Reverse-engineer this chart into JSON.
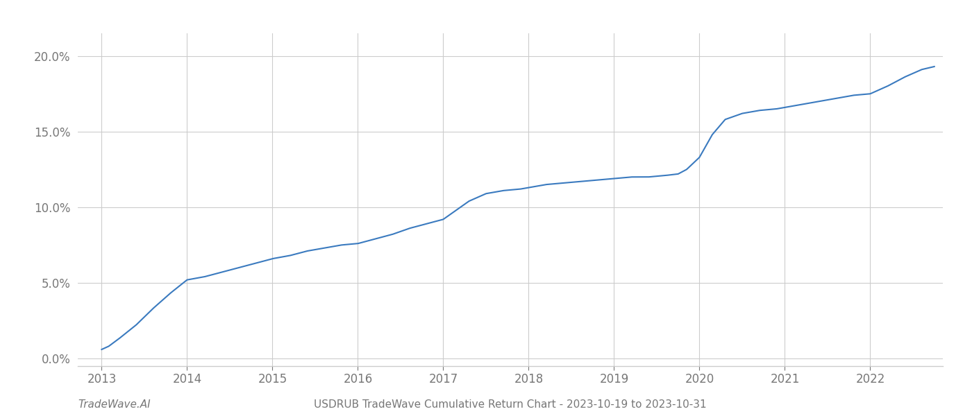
{
  "title": "USDRUB TradeWave Cumulative Return Chart - 2023-10-19 to 2023-10-31",
  "footer_left": "TradeWave.AI",
  "line_color": "#3a7abf",
  "background_color": "#ffffff",
  "grid_color": "#cccccc",
  "waypoints_x": [
    2013.0,
    2013.08,
    2013.2,
    2013.4,
    2013.6,
    2013.8,
    2014.0,
    2014.1,
    2014.2,
    2014.4,
    2014.6,
    2014.8,
    2015.0,
    2015.2,
    2015.4,
    2015.6,
    2015.8,
    2016.0,
    2016.2,
    2016.4,
    2016.6,
    2016.8,
    2017.0,
    2017.15,
    2017.3,
    2017.5,
    2017.7,
    2017.9,
    2018.0,
    2018.2,
    2018.4,
    2018.6,
    2018.8,
    2019.0,
    2019.2,
    2019.4,
    2019.6,
    2019.75,
    2019.85,
    2020.0,
    2020.15,
    2020.3,
    2020.5,
    2020.7,
    2020.9,
    2021.0,
    2021.2,
    2021.4,
    2021.6,
    2021.8,
    2022.0,
    2022.2,
    2022.4,
    2022.6,
    2022.75
  ],
  "waypoints_y": [
    0.006,
    0.008,
    0.013,
    0.022,
    0.033,
    0.043,
    0.052,
    0.053,
    0.054,
    0.057,
    0.06,
    0.063,
    0.066,
    0.068,
    0.071,
    0.073,
    0.075,
    0.076,
    0.079,
    0.082,
    0.086,
    0.089,
    0.092,
    0.098,
    0.104,
    0.109,
    0.111,
    0.112,
    0.113,
    0.115,
    0.116,
    0.117,
    0.118,
    0.119,
    0.12,
    0.12,
    0.121,
    0.122,
    0.125,
    0.133,
    0.148,
    0.158,
    0.162,
    0.164,
    0.165,
    0.166,
    0.168,
    0.17,
    0.172,
    0.174,
    0.175,
    0.18,
    0.186,
    0.191,
    0.193
  ],
  "xlim": [
    2012.72,
    2022.85
  ],
  "ylim": [
    -0.005,
    0.215
  ],
  "yticks": [
    0.0,
    0.05,
    0.1,
    0.15,
    0.2
  ],
  "xticks": [
    2013,
    2014,
    2015,
    2016,
    2017,
    2018,
    2019,
    2020,
    2021,
    2022
  ],
  "line_width": 1.5,
  "font_color": "#777777",
  "axis_color": "#cccccc",
  "tick_fontsize": 12,
  "footer_fontsize": 11,
  "figsize": [
    14.0,
    6.0
  ],
  "dpi": 100
}
